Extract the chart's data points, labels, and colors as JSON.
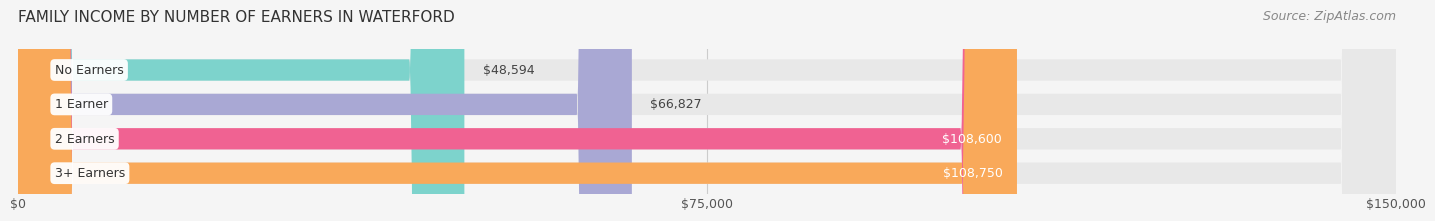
{
  "title": "FAMILY INCOME BY NUMBER OF EARNERS IN WATERFORD",
  "source": "Source: ZipAtlas.com",
  "categories": [
    "No Earners",
    "1 Earner",
    "2 Earners",
    "3+ Earners"
  ],
  "values": [
    48594,
    66827,
    108600,
    108750
  ],
  "labels": [
    "$48,594",
    "$66,827",
    "$108,600",
    "$108,750"
  ],
  "bar_colors": [
    "#7dd3cc",
    "#a9a8d4",
    "#f06292",
    "#f9a95a"
  ],
  "label_colors": [
    "#555555",
    "#555555",
    "#ffffff",
    "#ffffff"
  ],
  "xlim": [
    0,
    150000
  ],
  "xticks": [
    0,
    75000,
    150000
  ],
  "xticklabels": [
    "$0",
    "$75,000",
    "$150,000"
  ],
  "background_color": "#f5f5f5",
  "bar_bg_color": "#e8e8e8",
  "title_fontsize": 11,
  "source_fontsize": 9,
  "label_fontsize": 9,
  "category_fontsize": 9,
  "tick_fontsize": 9
}
